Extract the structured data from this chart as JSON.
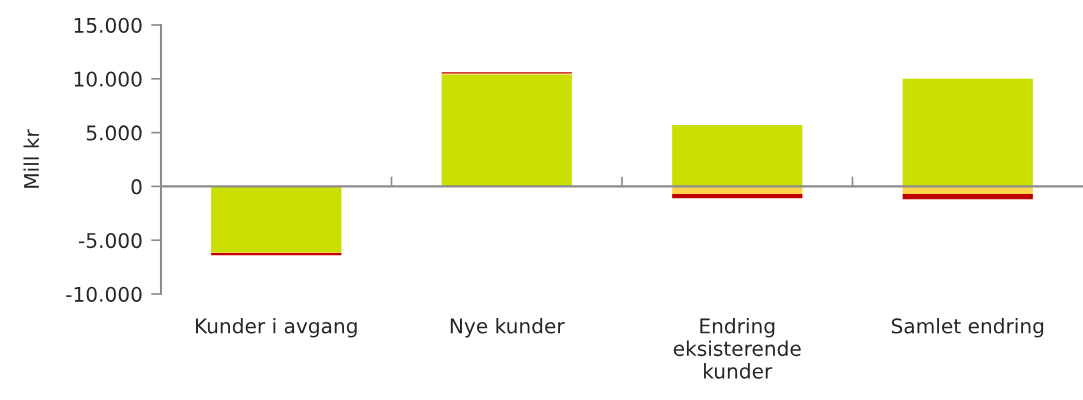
{
  "chart_data": {
    "type": "bar",
    "stacked": true,
    "ylabel": "Mill kr",
    "categories": [
      "Kunder i avgang",
      "Nye kunder",
      "Endring eksisterende kunder",
      "Samlet endring"
    ],
    "series": [
      {
        "color": "#cadf00",
        "values": [
          -6100,
          10400,
          5700,
          10000
        ]
      },
      {
        "color": "#fdd34b",
        "values": [
          -100,
          100,
          -700,
          -700
        ]
      },
      {
        "color": "#c00000",
        "values": [
          -200,
          100,
          -400,
          -500
        ]
      }
    ],
    "ylim": [
      -10000,
      15000
    ],
    "yticks": [
      {
        "value": -10000,
        "label": "-10.000"
      },
      {
        "value": -5000,
        "label": "-5.000"
      },
      0,
      {
        "value": 5000,
        "label": "5.000"
      },
      {
        "value": 10000,
        "label": "10.000"
      },
      {
        "value": 15000,
        "label": "15.000"
      }
    ],
    "legend": false
  }
}
